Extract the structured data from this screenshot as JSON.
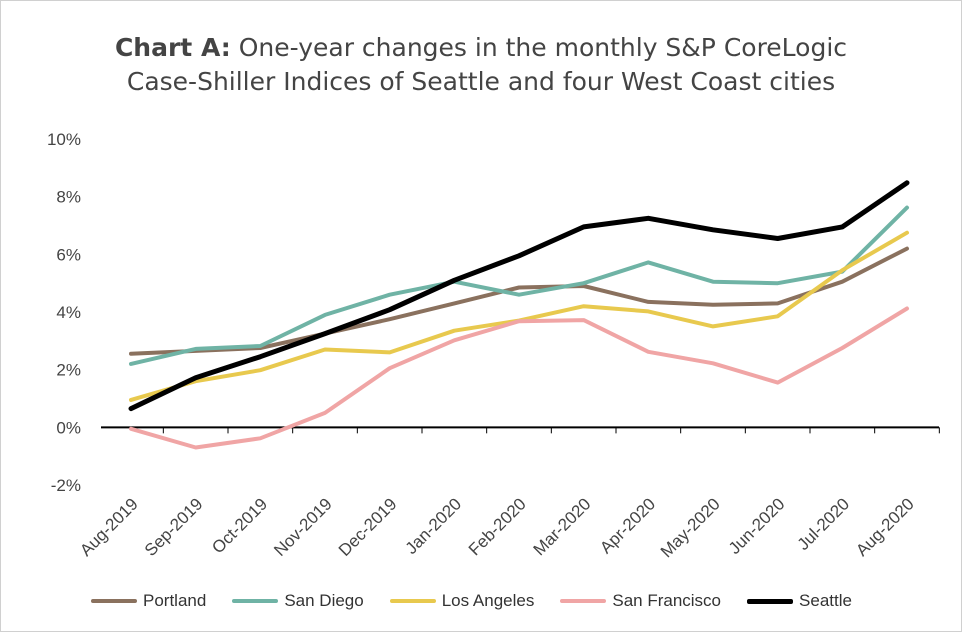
{
  "title": {
    "lead": "Chart A:",
    "line1_rest": " One-year changes in the monthly S&P CoreLogic",
    "line2": "Case-Shiller Indices of Seattle and four West Coast cities"
  },
  "chart_data": {
    "type": "line",
    "categories": [
      "Aug-2019",
      "Sep-2019",
      "Oct-2019",
      "Nov-2019",
      "Dec-2019",
      "Jan-2020",
      "Feb-2020",
      "Mar-2020",
      "Apr-2020",
      "May-2020",
      "Jun-2020",
      "Jul-2020",
      "Aug-2020"
    ],
    "ylim": [
      -2,
      10
    ],
    "yticks": [
      -2,
      0,
      2,
      4,
      6,
      8,
      10
    ],
    "ytick_labels": [
      "-2%",
      "0%",
      "2%",
      "4%",
      "6%",
      "8%",
      "10%"
    ],
    "grid": false,
    "legend_position": "bottom",
    "series": [
      {
        "name": "Portland",
        "color": "#8a715e",
        "width": 4,
        "values": [
          2.55,
          2.65,
          2.75,
          3.25,
          3.75,
          4.3,
          4.85,
          4.9,
          4.35,
          4.25,
          4.3,
          5.05,
          6.2
        ]
      },
      {
        "name": "San Diego",
        "color": "#6fb3a5",
        "width": 4,
        "values": [
          2.2,
          2.72,
          2.82,
          3.9,
          4.6,
          5.05,
          4.6,
          5.0,
          5.72,
          5.05,
          5.0,
          5.4,
          7.62
        ]
      },
      {
        "name": "Los Angeles",
        "color": "#e8c94e",
        "width": 4,
        "values": [
          0.95,
          1.6,
          1.98,
          2.7,
          2.6,
          3.35,
          3.7,
          4.2,
          4.02,
          3.5,
          3.85,
          5.45,
          6.75
        ]
      },
      {
        "name": "San Francisco",
        "color": "#f0a5a5",
        "width": 4,
        "values": [
          -0.05,
          -0.7,
          -0.38,
          0.5,
          2.05,
          3.02,
          3.68,
          3.72,
          2.62,
          2.22,
          1.55,
          2.75,
          4.12
        ]
      },
      {
        "name": "Seattle",
        "color": "#000000",
        "width": 5,
        "values": [
          0.65,
          1.72,
          2.45,
          3.25,
          4.08,
          5.1,
          5.95,
          6.95,
          7.25,
          6.85,
          6.55,
          6.95,
          8.48
        ]
      }
    ]
  }
}
